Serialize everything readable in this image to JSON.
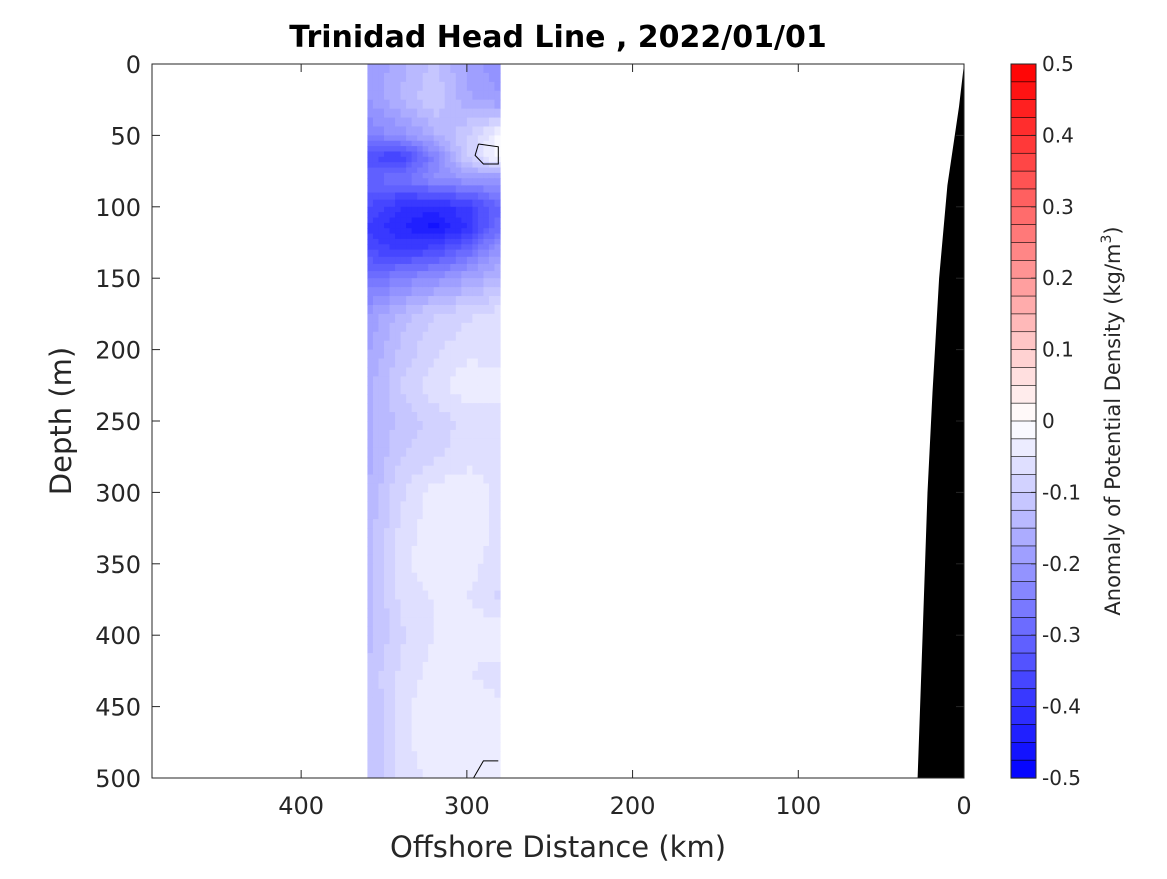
{
  "chart_data": {
    "type": "heatmap",
    "title": "Trinidad Head Line , 2022/01/01",
    "xlabel": "Offshore Distance (km)",
    "ylabel": "Depth (m)",
    "xlim": [
      490,
      0
    ],
    "ylim": [
      0,
      500
    ],
    "x_reversed": true,
    "y_reversed": true,
    "x_ticks": [
      400,
      300,
      200,
      100,
      0
    ],
    "y_ticks": [
      0,
      50,
      100,
      150,
      200,
      250,
      300,
      350,
      400,
      450,
      500
    ],
    "data_x_range": [
      360,
      280
    ],
    "colorbar": {
      "label": "Anomaly of Potential Density (kg/m",
      "label_superscript": "3",
      "label_close": ")",
      "range": [
        -0.5,
        0.5
      ],
      "ticks": [
        0.5,
        0.4,
        0.3,
        0.2,
        0.1,
        0,
        -0.1,
        -0.2,
        -0.3,
        -0.4,
        -0.5
      ],
      "tick_labels": [
        "0.5",
        "0.4",
        "0.3",
        "0.2",
        "0.1",
        "0",
        "-0.1",
        "-0.2",
        "-0.3",
        "-0.4",
        "-0.5"
      ],
      "levels": 40,
      "colormap": "blue-white-red",
      "low_color": "#0000ff",
      "mid_color": "#ffffff",
      "high_color": "#ff0000"
    },
    "field": {
      "x_km": [
        360,
        340,
        320,
        300,
        280
      ],
      "depth_m": [
        0,
        25,
        50,
        65,
        80,
        100,
        115,
        130,
        150,
        175,
        200,
        225,
        250,
        275,
        300,
        325,
        350,
        375,
        400,
        425,
        450,
        475,
        500
      ],
      "anomaly": [
        [
          -0.2,
          -0.16,
          -0.12,
          -0.18,
          -0.22
        ],
        [
          -0.2,
          -0.15,
          -0.1,
          -0.17,
          -0.2
        ],
        [
          -0.25,
          -0.22,
          -0.16,
          -0.1,
          -0.02
        ],
        [
          -0.35,
          -0.38,
          -0.25,
          -0.1,
          0.0
        ],
        [
          -0.3,
          -0.28,
          -0.22,
          -0.2,
          -0.2
        ],
        [
          -0.35,
          -0.4,
          -0.42,
          -0.38,
          -0.3
        ],
        [
          -0.38,
          -0.42,
          -0.46,
          -0.4,
          -0.28
        ],
        [
          -0.35,
          -0.38,
          -0.36,
          -0.3,
          -0.2
        ],
        [
          -0.28,
          -0.25,
          -0.22,
          -0.18,
          -0.14
        ],
        [
          -0.2,
          -0.14,
          -0.1,
          -0.08,
          -0.06
        ],
        [
          -0.18,
          -0.12,
          -0.08,
          -0.06,
          -0.06
        ],
        [
          -0.16,
          -0.1,
          -0.06,
          -0.03,
          -0.04
        ],
        [
          -0.16,
          -0.12,
          -0.09,
          -0.07,
          -0.06
        ],
        [
          -0.16,
          -0.1,
          -0.08,
          -0.06,
          -0.06
        ],
        [
          -0.15,
          -0.08,
          -0.04,
          -0.03,
          -0.06
        ],
        [
          -0.14,
          -0.07,
          -0.03,
          -0.03,
          -0.06
        ],
        [
          -0.14,
          -0.06,
          -0.03,
          -0.04,
          -0.06
        ],
        [
          -0.14,
          -0.07,
          -0.05,
          -0.05,
          -0.08
        ],
        [
          -0.14,
          -0.08,
          -0.05,
          -0.03,
          -0.02
        ],
        [
          -0.12,
          -0.07,
          -0.04,
          -0.05,
          -0.06
        ],
        [
          -0.13,
          -0.06,
          -0.03,
          -0.03,
          -0.05
        ],
        [
          -0.13,
          -0.06,
          -0.03,
          -0.03,
          -0.05
        ],
        [
          -0.13,
          -0.07,
          -0.04,
          -0.04,
          -0.04
        ]
      ]
    },
    "zero_contours": [
      [
        [
          293,
          56
        ],
        [
          281,
          58
        ],
        [
          281,
          70
        ],
        [
          290,
          70
        ],
        [
          295,
          64
        ],
        [
          293,
          56
        ]
      ],
      [
        [
          296,
          500
        ],
        [
          290,
          488
        ],
        [
          281,
          488
        ]
      ]
    ],
    "bathymetry": {
      "color": "#000000",
      "points": [
        [
          0,
          0
        ],
        [
          3,
          30
        ],
        [
          10,
          85
        ],
        [
          15,
          150
        ],
        [
          19,
          230
        ],
        [
          22,
          300
        ],
        [
          25,
          400
        ],
        [
          28,
          500
        ],
        [
          0,
          500
        ]
      ]
    }
  }
}
